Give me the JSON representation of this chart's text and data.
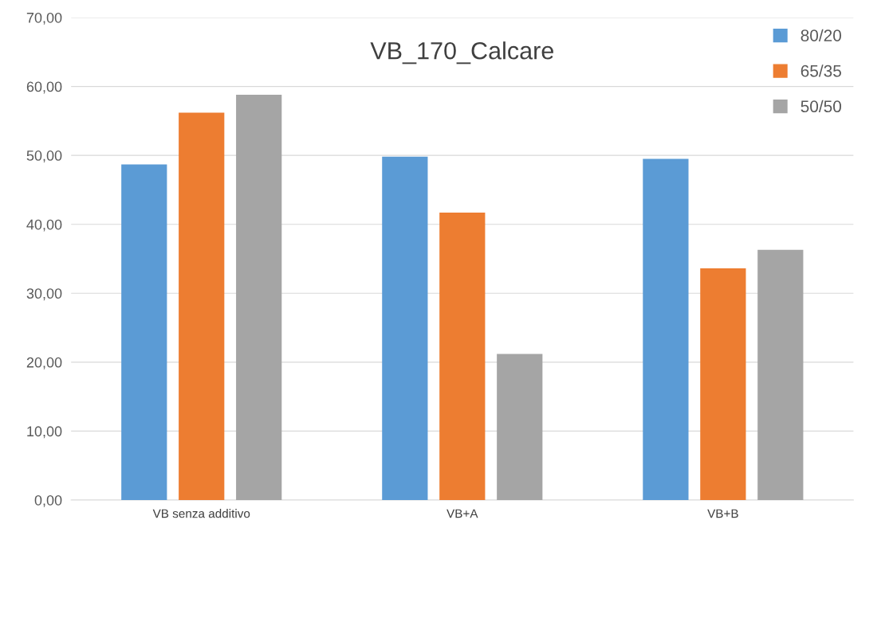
{
  "chart_data": {
    "type": "bar",
    "title": "VB_170_Calcare",
    "categories": [
      "VB senza additivo",
      "VB+A",
      "VB+B"
    ],
    "series": [
      {
        "name": "80/20",
        "color": "#5b9bd5",
        "values": [
          48.7,
          49.8,
          49.5
        ]
      },
      {
        "name": "65/35",
        "color": "#ed7d31",
        "values": [
          56.2,
          41.7,
          33.6
        ]
      },
      {
        "name": "50/50",
        "color": "#a5a5a5",
        "values": [
          58.8,
          21.2,
          36.3
        ]
      }
    ],
    "ylim": [
      0,
      70
    ],
    "yticks": [
      {
        "value": 0,
        "label": "0,00"
      },
      {
        "value": 10,
        "label": "10,00"
      },
      {
        "value": 20,
        "label": "20,00"
      },
      {
        "value": 30,
        "label": "30,00"
      },
      {
        "value": 40,
        "label": "40,00"
      },
      {
        "value": 50,
        "label": "50,00"
      },
      {
        "value": 60,
        "label": "60,00"
      },
      {
        "value": 70,
        "label": "70,00"
      }
    ],
    "grid": "y",
    "legend": "top right"
  }
}
